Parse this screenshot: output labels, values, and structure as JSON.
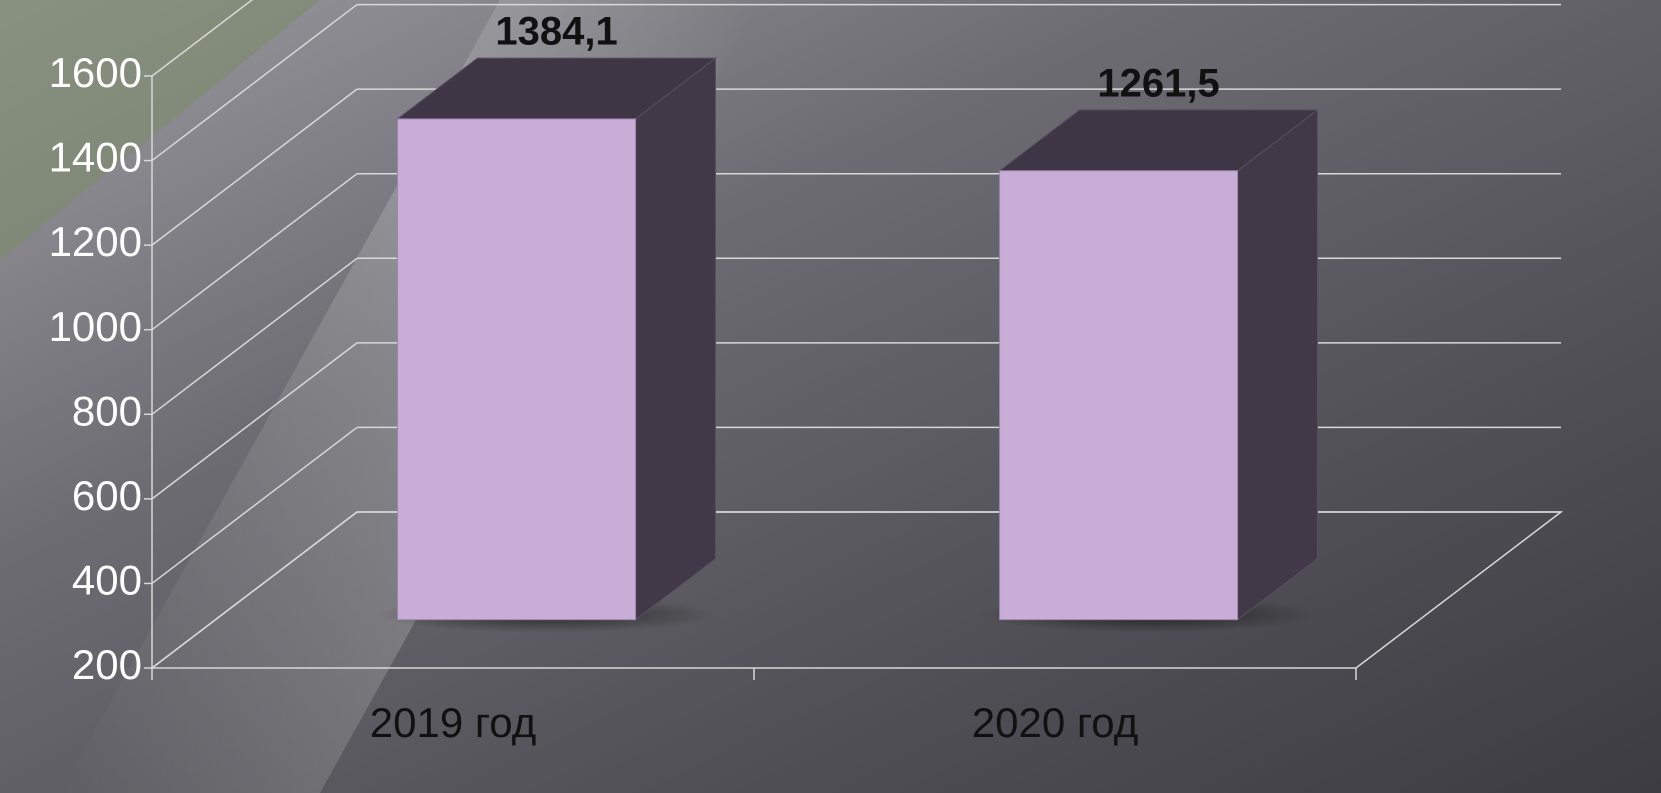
{
  "chart_data": {
    "type": "bar3d",
    "categories": [
      "2019 год",
      "2020 год"
    ],
    "values": [
      1384.1,
      1261.5
    ],
    "value_labels": [
      "1384,1",
      "1261,5"
    ],
    "color": "#c8aed6",
    "ylim": [
      200,
      1600
    ],
    "yticks": [
      200,
      400,
      600,
      800,
      1000,
      1200,
      1400,
      1600
    ],
    "grid": true
  }
}
